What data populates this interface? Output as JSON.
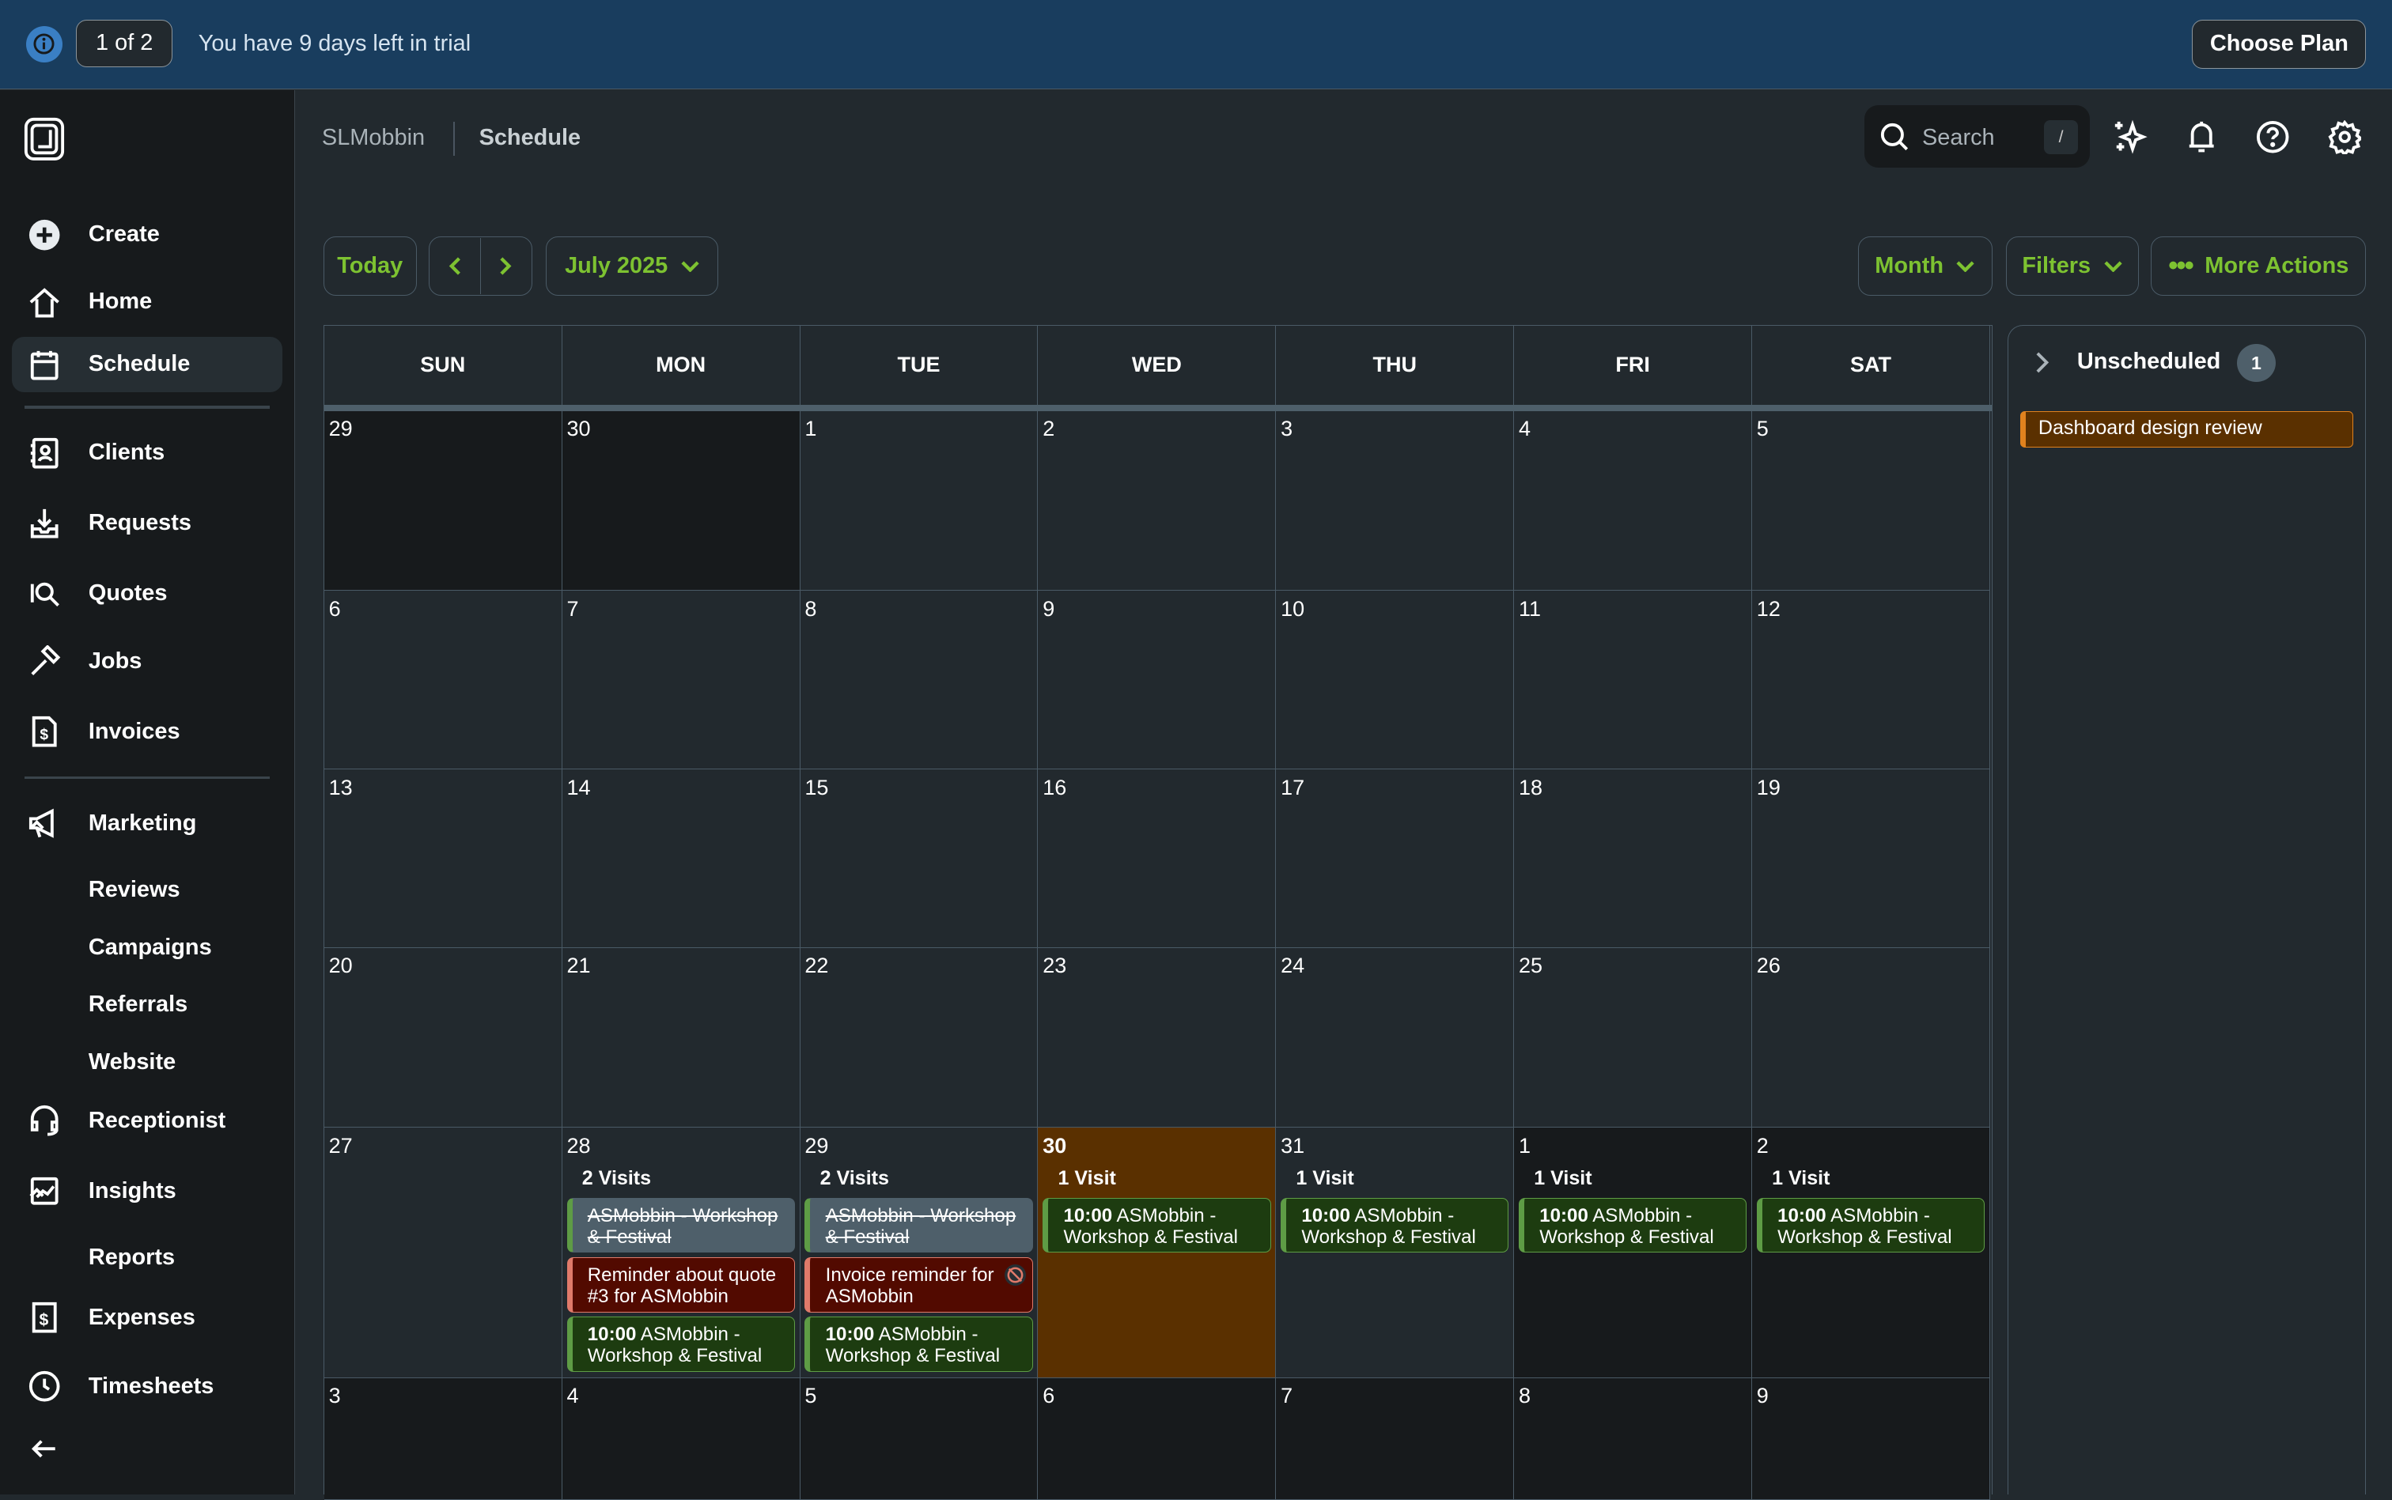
{
  "topbar": {
    "pager": "1 of 2",
    "trial": "You have 9 days left in trial",
    "choose_plan": "Choose Plan"
  },
  "sidebar": {
    "create": "Create",
    "home": "Home",
    "schedule": "Schedule",
    "clients": "Clients",
    "requests": "Requests",
    "quotes": "Quotes",
    "jobs": "Jobs",
    "invoices": "Invoices",
    "marketing": "Marketing",
    "reviews": "Reviews",
    "campaigns": "Campaigns",
    "referrals": "Referrals",
    "website": "Website",
    "receptionist": "Receptionist",
    "insights": "Insights",
    "reports": "Reports",
    "expenses": "Expenses",
    "timesheets": "Timesheets"
  },
  "breadcrumb": {
    "account": "SLMobbin",
    "page": "Schedule"
  },
  "search": {
    "placeholder": "Search",
    "shortcut": "/"
  },
  "toolbar": {
    "today": "Today",
    "month_label": "July 2025",
    "view": "Month",
    "filters": "Filters",
    "more": "More Actions"
  },
  "accent": "#7dc231",
  "calendar": {
    "weekdays": [
      "SUN",
      "MON",
      "TUE",
      "WED",
      "THU",
      "FRI",
      "SAT"
    ],
    "weeks": [
      [
        {
          "d": "29",
          "muted": true
        },
        {
          "d": "30",
          "muted": true
        },
        {
          "d": "1"
        },
        {
          "d": "2"
        },
        {
          "d": "3"
        },
        {
          "d": "4"
        },
        {
          "d": "5"
        }
      ],
      [
        {
          "d": "6"
        },
        {
          "d": "7"
        },
        {
          "d": "8"
        },
        {
          "d": "9"
        },
        {
          "d": "10"
        },
        {
          "d": "11"
        },
        {
          "d": "12"
        }
      ],
      [
        {
          "d": "13"
        },
        {
          "d": "14"
        },
        {
          "d": "15"
        },
        {
          "d": "16"
        },
        {
          "d": "17"
        },
        {
          "d": "18"
        },
        {
          "d": "19"
        }
      ],
      [
        {
          "d": "20"
        },
        {
          "d": "21"
        },
        {
          "d": "22"
        },
        {
          "d": "23"
        },
        {
          "d": "24"
        },
        {
          "d": "25"
        },
        {
          "d": "26"
        }
      ],
      [
        {
          "d": "27"
        },
        {
          "d": "28",
          "visits": "2 Visits",
          "events": [
            {
              "type": "x",
              "text": "ASMobbin - Workshop & Festival"
            },
            {
              "type": "r",
              "text": "Reminder about quote #3 for ASMobbin"
            },
            {
              "type": "g",
              "time": "10:00",
              "text": "ASMobbin - Workshop & Festival"
            }
          ]
        },
        {
          "d": "29",
          "visits": "2 Visits",
          "events": [
            {
              "type": "x",
              "text": "ASMobbin - Workshop & Festival"
            },
            {
              "type": "r",
              "text": "Invoice reminder for ASMobbin",
              "icon": "no-notification-icon"
            },
            {
              "type": "g",
              "time": "10:00",
              "text": "ASMobbin - Workshop & Festival"
            }
          ]
        },
        {
          "d": "30",
          "today": true,
          "visits": "1 Visit",
          "events": [
            {
              "type": "g",
              "time": "10:00",
              "text": "ASMobbin - Workshop & Festival"
            }
          ]
        },
        {
          "d": "31",
          "visits": "1 Visit",
          "events": [
            {
              "type": "g",
              "time": "10:00",
              "text": "ASMobbin - Workshop & Festival"
            }
          ]
        },
        {
          "d": "1",
          "muted": true,
          "visits": "1 Visit",
          "events": [
            {
              "type": "g",
              "time": "10:00",
              "text": "ASMobbin - Workshop & Festival"
            }
          ]
        },
        {
          "d": "2",
          "muted": true,
          "visits": "1 Visit",
          "events": [
            {
              "type": "g",
              "time": "10:00",
              "text": "ASMobbin - Workshop & Festival"
            }
          ]
        }
      ],
      [
        {
          "d": "3",
          "muted": true
        },
        {
          "d": "4",
          "muted": true
        },
        {
          "d": "5",
          "muted": true
        },
        {
          "d": "6",
          "muted": true
        },
        {
          "d": "7",
          "muted": true
        },
        {
          "d": "8",
          "muted": true
        },
        {
          "d": "9",
          "muted": true
        }
      ]
    ]
  },
  "unscheduled": {
    "title": "Unscheduled",
    "count": "1",
    "items": [
      "Dashboard design review"
    ]
  }
}
